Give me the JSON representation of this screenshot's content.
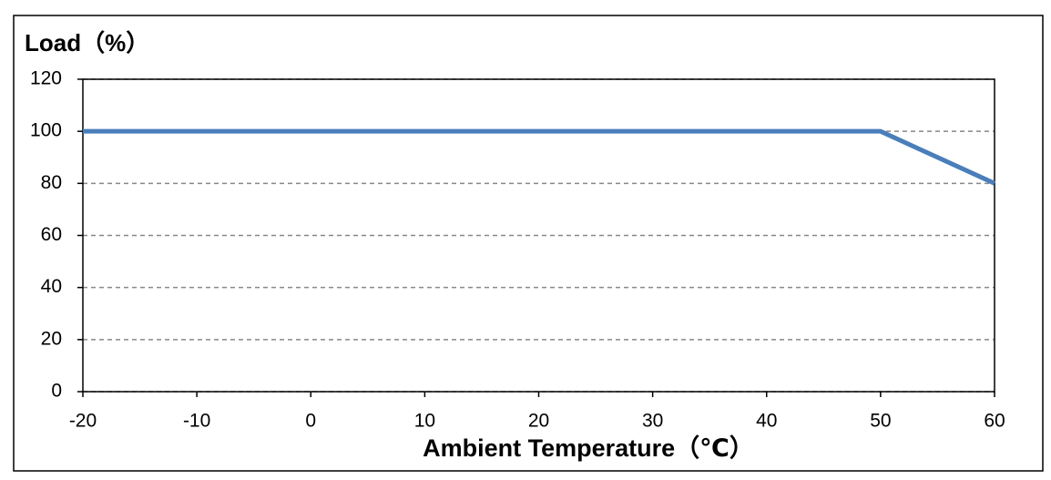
{
  "chart_data": {
    "type": "line",
    "title": "Load（%）",
    "x_label": "Ambient Temperature（℃）",
    "x": [
      -20,
      50,
      60
    ],
    "series": [
      {
        "name": "Load",
        "color": "#4a7ebb",
        "values": [
          100,
          100,
          80
        ]
      }
    ],
    "xlim": [
      -20,
      60
    ],
    "xticks": [
      -20,
      -10,
      0,
      10,
      20,
      30,
      40,
      50,
      60
    ],
    "ylim": [
      0,
      120
    ],
    "yticks": [
      0,
      20,
      40,
      60,
      80,
      100,
      120
    ],
    "grid": true
  }
}
